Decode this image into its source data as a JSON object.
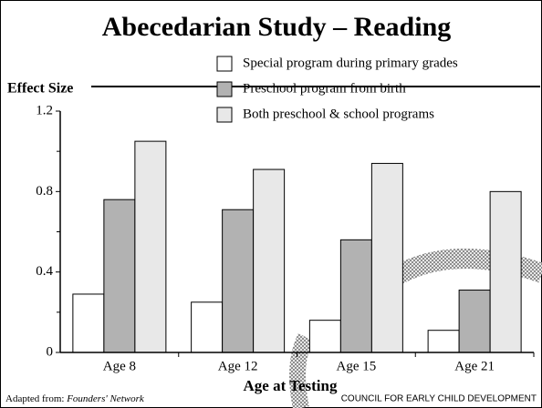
{
  "chart_data": {
    "type": "bar",
    "title": "Abecedarian Study – Reading",
    "y_label": "Effect Size",
    "x_label": "Age at Testing",
    "categories": [
      "Age 8",
      "Age 12",
      "Age 15",
      "Age 21"
    ],
    "series": [
      {
        "name": "Special program during primary grades",
        "color": "#ffffff",
        "values": [
          0.29,
          0.25,
          0.16,
          0.11
        ]
      },
      {
        "name": "Preschool program from birth",
        "color": "#b2b2b2",
        "values": [
          0.76,
          0.71,
          0.56,
          0.31
        ]
      },
      {
        "name": "Both preschool & school programs",
        "color": "#e8e8e8",
        "values": [
          1.05,
          0.91,
          0.94,
          0.8
        ]
      }
    ],
    "ylim": [
      0,
      1.2
    ],
    "yticks": [
      0,
      0.4,
      0.8,
      1.2
    ],
    "legend": "top-right",
    "annotations": [
      "Adapted from:",
      "Founders' Network",
      "COUNCIL FOR EARLY CHILD DEVELOPMENT"
    ]
  }
}
